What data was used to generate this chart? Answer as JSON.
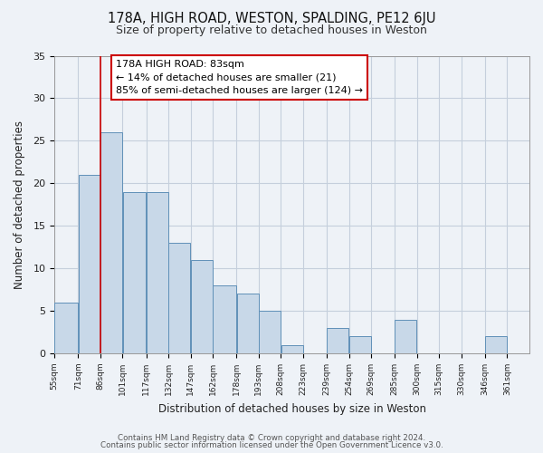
{
  "title": "178A, HIGH ROAD, WESTON, SPALDING, PE12 6JU",
  "subtitle": "Size of property relative to detached houses in Weston",
  "xlabel": "Distribution of detached houses by size in Weston",
  "ylabel": "Number of detached properties",
  "footer_lines": [
    "Contains HM Land Registry data © Crown copyright and database right 2024.",
    "Contains public sector information licensed under the Open Government Licence v3.0."
  ],
  "bar_left_edges": [
    55,
    71,
    86,
    101,
    117,
    132,
    147,
    162,
    178,
    193,
    208,
    223,
    239,
    254,
    269,
    285,
    300,
    315,
    330,
    346
  ],
  "bar_widths": [
    16,
    15,
    15,
    16,
    15,
    15,
    15,
    16,
    15,
    15,
    15,
    16,
    15,
    15,
    16,
    15,
    15,
    15,
    16,
    15
  ],
  "bar_heights": [
    6,
    21,
    26,
    19,
    19,
    13,
    11,
    8,
    7,
    5,
    1,
    0,
    3,
    2,
    0,
    4,
    0,
    0,
    0,
    2
  ],
  "tick_labels": [
    "55sqm",
    "71sqm",
    "86sqm",
    "101sqm",
    "117sqm",
    "132sqm",
    "147sqm",
    "162sqm",
    "178sqm",
    "193sqm",
    "208sqm",
    "223sqm",
    "239sqm",
    "254sqm",
    "269sqm",
    "285sqm",
    "300sqm",
    "315sqm",
    "330sqm",
    "346sqm",
    "361sqm"
  ],
  "bar_color": "#c8d8e8",
  "bar_edge_color": "#6090b8",
  "reference_line_x": 86,
  "reference_line_color": "#cc0000",
  "annotation_title": "178A HIGH ROAD: 83sqm",
  "annotation_line1": "← 14% of detached houses are smaller (21)",
  "annotation_line2": "85% of semi-detached houses are larger (124) →",
  "annotation_box_color": "#cc0000",
  "ylim": [
    0,
    35
  ],
  "yticks": [
    0,
    5,
    10,
    15,
    20,
    25,
    30,
    35
  ],
  "background_color": "#eef2f7",
  "plot_bg_color": "#eef2f7",
  "grid_color": "#c5cfdc"
}
